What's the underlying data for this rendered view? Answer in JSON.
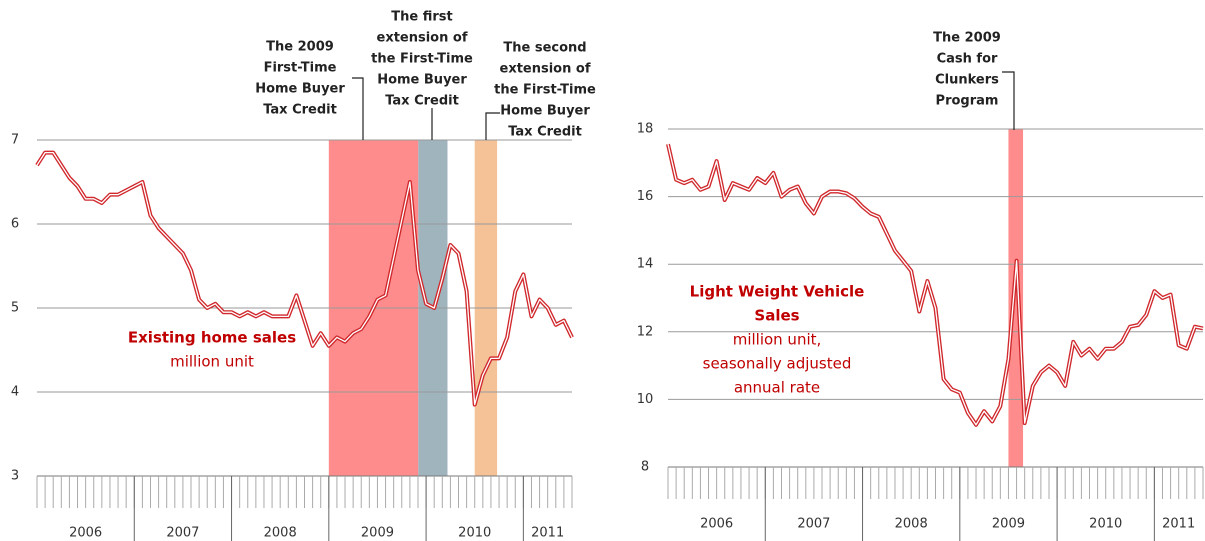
{
  "chart_data": [
    {
      "type": "line",
      "xlim": [
        2006,
        2011.5
      ],
      "xticks": [
        2006,
        2007,
        2008,
        2009,
        2010,
        2011
      ],
      "ylim": [
        3,
        7
      ],
      "yticks": [
        3,
        4,
        5,
        6,
        7
      ],
      "grid": true,
      "series": [
        {
          "color": "#d0282c",
          "label_lines": [
            "Existing home sales"
          ],
          "unit_lines": [
            "million unit"
          ],
          "values": [
            6.7,
            6.85,
            6.85,
            6.7,
            6.55,
            6.45,
            6.3,
            6.3,
            6.25,
            6.35,
            6.35,
            6.4,
            6.45,
            6.5,
            6.1,
            5.95,
            5.85,
            5.75,
            5.65,
            5.45,
            5.1,
            5.0,
            5.05,
            4.95,
            4.95,
            4.9,
            4.95,
            4.9,
            4.95,
            4.9,
            4.9,
            4.9,
            5.15,
            4.85,
            4.55,
            4.7,
            4.55,
            4.65,
            4.6,
            4.7,
            4.75,
            4.9,
            5.1,
            5.15,
            5.6,
            6.05,
            6.5,
            5.45,
            5.05,
            5.0,
            5.35,
            5.75,
            5.65,
            5.2,
            3.85,
            4.2,
            4.4,
            4.4,
            4.65,
            5.2,
            5.4,
            4.9,
            5.1,
            5.0,
            4.8,
            4.85,
            4.65
          ]
        }
      ],
      "bands": [
        {
          "start": 2009.0,
          "end": 2009.92,
          "color": "#ff8c8c",
          "lines": [
            "The 2009",
            "First-Time",
            "Home Buyer",
            "Tax Credit"
          ]
        },
        {
          "start": 2009.92,
          "end": 2010.22,
          "color": "#9fb4bd",
          "lines": [
            "The first",
            "extension of",
            "the First-Time",
            "Home Buyer",
            "Tax Credit"
          ]
        },
        {
          "start": 2010.5,
          "end": 2010.73,
          "color": "#f5c197",
          "lines": [
            "The second",
            "extension of",
            "the First-Time",
            "Home Buyer",
            "Tax Credit"
          ]
        }
      ]
    },
    {
      "type": "line",
      "xlim": [
        2006,
        2011.5
      ],
      "xticks": [
        2006,
        2007,
        2008,
        2009,
        2010,
        2011
      ],
      "ylim": [
        8,
        18
      ],
      "yticks": [
        8,
        10,
        12,
        14,
        16,
        18
      ],
      "grid": true,
      "series": [
        {
          "color": "#d0282c",
          "label_lines": [
            "Light Weight Vehicle",
            "Sales"
          ],
          "unit_lines": [
            "million unit,",
            "seasonally adjusted",
            "annual rate"
          ],
          "values": [
            17.55,
            16.5,
            16.4,
            16.5,
            16.2,
            16.3,
            17.05,
            15.9,
            16.4,
            16.3,
            16.2,
            16.55,
            16.4,
            16.7,
            16.0,
            16.2,
            16.3,
            15.8,
            15.5,
            16.0,
            16.15,
            16.15,
            16.1,
            15.95,
            15.7,
            15.5,
            15.4,
            14.9,
            14.4,
            14.1,
            13.8,
            12.6,
            13.5,
            12.7,
            10.6,
            10.3,
            10.2,
            9.6,
            9.25,
            9.65,
            9.35,
            9.8,
            11.2,
            14.1,
            9.3,
            10.4,
            10.8,
            11.0,
            10.8,
            10.4,
            11.7,
            11.3,
            11.5,
            11.2,
            11.5,
            11.5,
            11.7,
            12.15,
            12.2,
            12.5,
            13.2,
            13.0,
            13.1,
            11.6,
            11.5,
            12.15,
            12.1
          ]
        }
      ],
      "bands": [
        {
          "start": 2009.5,
          "end": 2009.65,
          "color": "#ff8c8c",
          "lines": [
            "The 2009",
            "Cash for",
            "Clunkers",
            "Program"
          ]
        }
      ]
    }
  ]
}
